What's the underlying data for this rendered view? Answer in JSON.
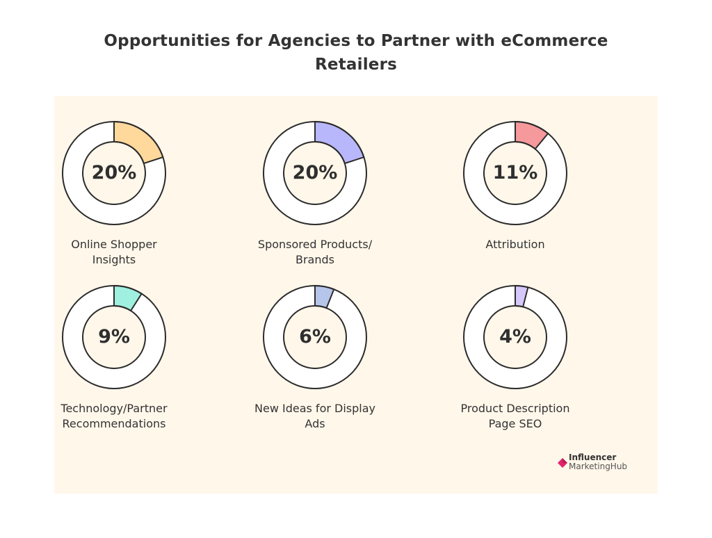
{
  "title": "Opportunities for Agencies to Partner with eCommerce Retailers",
  "chart_data": {
    "type": "pie",
    "subtype": "donut-grid",
    "items": [
      {
        "label": "Online Shopper Insights",
        "label_lines": [
          "Online Shopper",
          "Insights"
        ],
        "value": 20,
        "display": "20%",
        "color": "#ffd89c"
      },
      {
        "label": "Sponsored Products/ Brands",
        "label_lines": [
          "Sponsored Products/",
          "Brands"
        ],
        "value": 20,
        "display": "20%",
        "color": "#b9b7fb"
      },
      {
        "label": "Attribution",
        "label_lines": [
          "Attribution"
        ],
        "value": 11,
        "display": "11%",
        "color": "#f5999c"
      },
      {
        "label": "Technology/Partner Recommendations",
        "label_lines": [
          "Technology/Partner",
          "Recommendations"
        ],
        "value": 9,
        "display": "9%",
        "color": "#9ff0de"
      },
      {
        "label": "New Ideas for Display Ads",
        "label_lines": [
          "New Ideas for Display",
          "Ads"
        ],
        "value": 6,
        "display": "6%",
        "color": "#b6c5ea"
      },
      {
        "label": "Product Description Page SEO",
        "label_lines": [
          "Product Description",
          "Page SEO"
        ],
        "value": 4,
        "display": "4%",
        "color": "#d6c8fb"
      }
    ],
    "ring_background": "#ffffff",
    "panel_background": "#fff7ea"
  },
  "logo": {
    "line1": "Influencer",
    "line2": "MarketingHub",
    "accent": "#e0266b"
  }
}
